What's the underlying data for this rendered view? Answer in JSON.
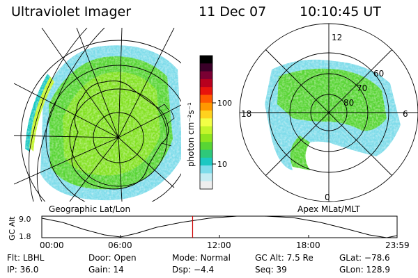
{
  "header": {
    "instrument": "Ultraviolet Imager",
    "date": "11 Dec 07",
    "time": "10:10:45 UT"
  },
  "left_map": {
    "caption": "Geographic Lat/Lon"
  },
  "right_map": {
    "caption": "Apex MLat/MLT",
    "mlt_labels": {
      "top": "12",
      "left": "18",
      "right": "6",
      "bottom": "0"
    },
    "lat_labels": [
      "60",
      "70",
      "80"
    ]
  },
  "colorbar": {
    "unit_label": "photon cm⁻²s⁻¹",
    "tick_labels": [
      "100",
      "10"
    ],
    "colors": [
      "#000000",
      "#3a0028",
      "#7a0033",
      "#b8001e",
      "#e8140c",
      "#ff5a00",
      "#ff9800",
      "#ffd21e",
      "#f2ff46",
      "#c4f52a",
      "#8fe51e",
      "#58d534",
      "#2ec87a",
      "#1cc8c2",
      "#7edcea",
      "#c4ecf2",
      "#eeeeee"
    ]
  },
  "altitude_plot": {
    "ylabel": "GC Alt",
    "y_ticks": [
      "9.0",
      "1.8"
    ],
    "x_ticks": [
      "00:00",
      "06:00",
      "12:00",
      "18:00",
      "23:59"
    ],
    "current_marker_hours": 10.18,
    "line_color": "#cc0000"
  },
  "status": {
    "row1": [
      {
        "label": "Flt:",
        "value": "LBHL"
      },
      {
        "label": "Door:",
        "value": "Open"
      },
      {
        "label": "Mode:",
        "value": "Normal"
      },
      {
        "label": "GC Alt:",
        "value": "7.5 Re"
      },
      {
        "label": "GLat:",
        "value": "−78.6"
      }
    ],
    "row2": [
      {
        "label": "IP:",
        "value": "36.0"
      },
      {
        "label": "Gain:",
        "value": "14"
      },
      {
        "label": "Dsp:",
        "value": "−4.4"
      },
      {
        "label": "Seq:",
        "value": "39"
      },
      {
        "label": "GLon:",
        "value": "128.9"
      }
    ]
  }
}
